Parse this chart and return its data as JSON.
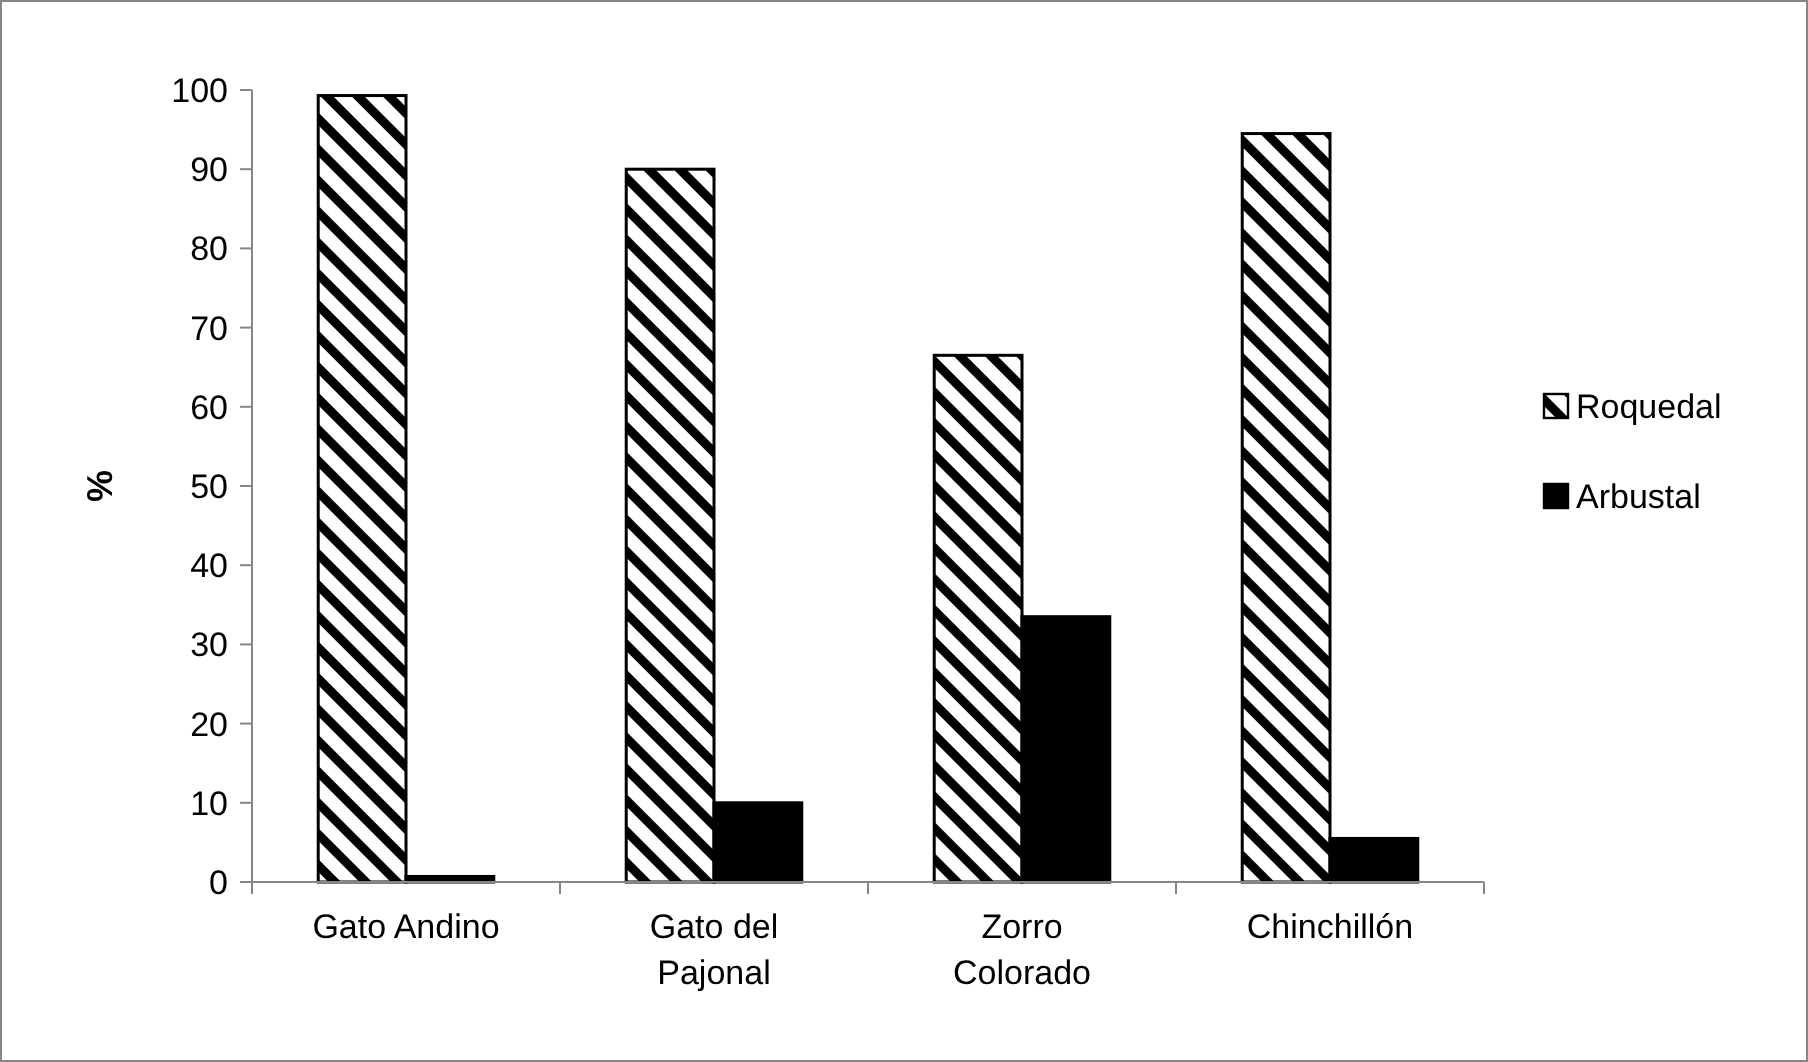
{
  "chart_data": {
    "type": "bar",
    "ylabel": "%",
    "categories": [
      "Gato Andino",
      "Gato del Pajonal",
      "Zorro Colorado",
      "Chinchillón"
    ],
    "series": [
      {
        "name": "Roquedal",
        "color": "#000000",
        "values": [
          99.3,
          90,
          66.5,
          94.5
        ]
      },
      {
        "name": "Arbustal",
        "color": "#000000",
        "values": [
          0.7,
          10,
          33.5,
          5.5
        ]
      }
    ],
    "ylim": [
      0,
      100
    ],
    "yticks": [
      0,
      10,
      20,
      30,
      40,
      50,
      60,
      70,
      80,
      90,
      100
    ],
    "grid": false,
    "legend": "right"
  }
}
